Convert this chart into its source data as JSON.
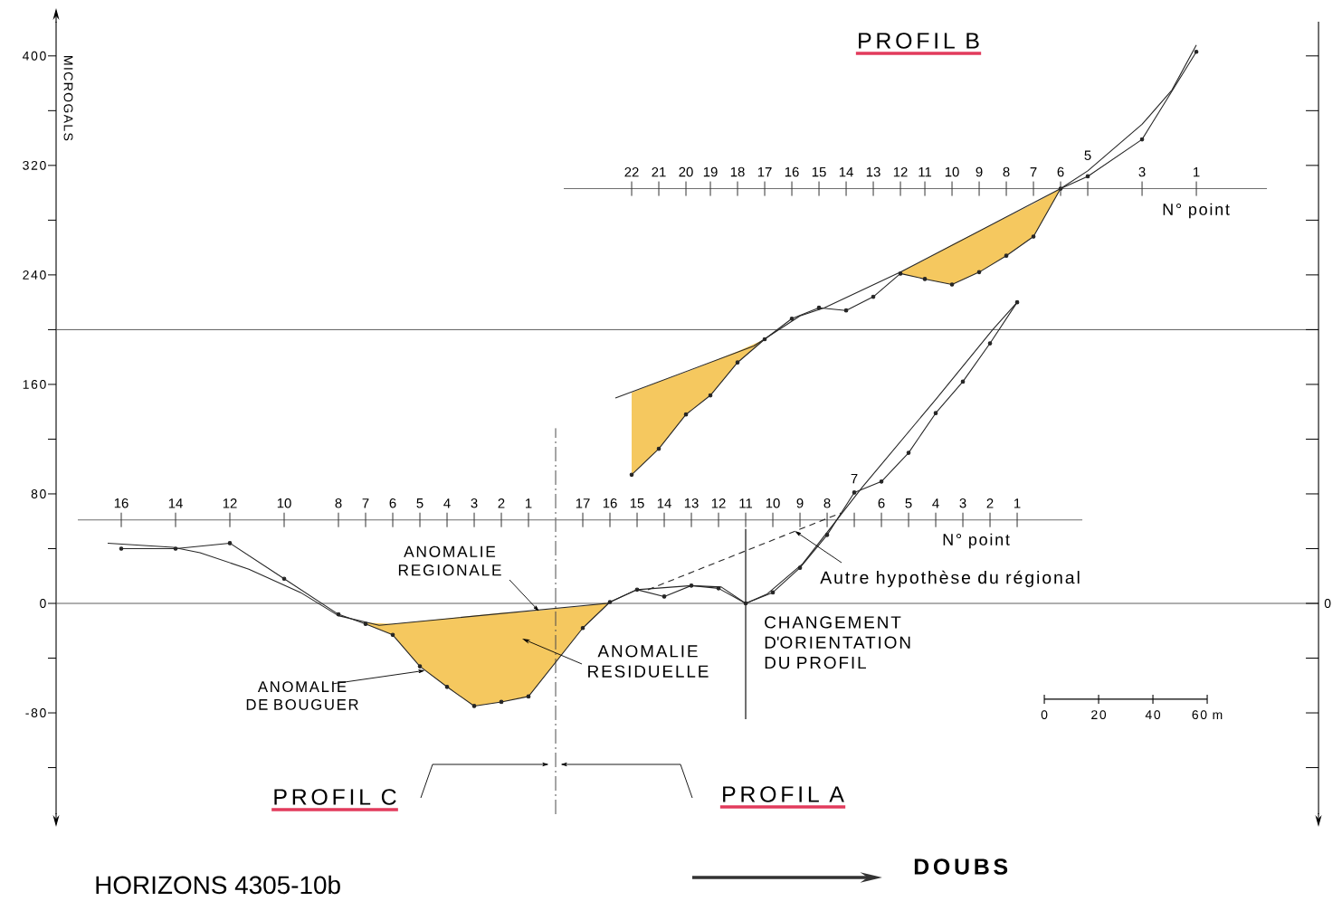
{
  "chart_data": {
    "type": "line",
    "ylabel": "MICROGALS",
    "xlim": [
      -364,
      101
    ],
    "xticks": [
      0,
      20,
      40,
      {
        "value": 60,
        "label": "60 m"
      }
    ],
    "ylim": [
      -154,
      425
    ],
    "yticks": [
      {
        "value": -120,
        "label": null
      },
      -80,
      {
        "value": -40,
        "label": null
      },
      0,
      {
        "value": 40,
        "label": null
      },
      80,
      {
        "value": 120,
        "label": null
      },
      160,
      {
        "value": 200,
        "label": null
      },
      240,
      {
        "value": 280,
        "label": null
      },
      320,
      {
        "value": 360,
        "label": null
      },
      400
    ],
    "series": [
      {
        "color": "#6e6e6e",
        "x": [
          -356,
          14
        ],
        "values": [
          61,
          61
        ]
      },
      {
        "color": "#6e6e6e",
        "x": [
          -177,
          82
        ],
        "values": [
          303,
          303
        ]
      },
      {
        "color": "#262626",
        "marker": "circle",
        "x": [
          -340,
          -320,
          -300,
          -280,
          -260,
          -250,
          -240,
          -230,
          -220,
          -210,
          -200,
          -190,
          -170,
          -160,
          -150,
          -140,
          -130,
          -120,
          -110,
          -100,
          -90,
          -80,
          -70,
          -60,
          -50,
          -40,
          -30,
          -20,
          -10
        ],
        "values": [
          40,
          40,
          44,
          18,
          -8,
          -15,
          -23,
          -46,
          -61,
          -75,
          -72,
          -68,
          -18,
          1,
          10,
          5,
          13,
          11,
          0,
          8,
          26,
          50,
          81,
          89,
          110,
          139,
          162,
          190,
          220
        ],
        "lower": [
          null,
          null,
          null,
          null,
          null,
          -15,
          -23,
          -46,
          -61,
          -75,
          -72,
          -68,
          -18,
          1,
          null,
          null,
          null,
          null,
          null,
          null,
          null,
          null,
          null,
          null,
          null,
          null,
          null,
          null,
          null
        ],
        "upper": [
          null,
          null,
          null,
          null,
          null,
          -14,
          -15,
          -13,
          -11,
          -9,
          -7,
          -6,
          -2,
          1,
          null,
          null,
          null,
          null,
          null,
          null,
          null,
          null,
          null,
          null,
          null,
          null,
          null,
          null,
          null
        ]
      },
      {
        "color": "#262626",
        "x": [
          -345,
          -321,
          -311,
          -293,
          -274,
          -260,
          -245,
          -161,
          -150,
          -130,
          -119,
          -110,
          -102,
          -89,
          -67,
          -40,
          -19,
          -10
        ],
        "values": [
          44,
          41,
          37,
          25,
          8,
          -9,
          -16,
          0,
          10,
          13,
          12,
          0,
          7,
          29,
          85,
          149,
          200,
          220
        ]
      },
      {
        "color": "#262626",
        "line_style": "dashed",
        "x": [
          -146,
          -75
        ],
        "values": [
          10,
          66
        ]
      },
      {
        "color": "#262626",
        "marker": "circle",
        "x": [
          -152,
          -142,
          -132,
          -123,
          -113,
          -103,
          -93,
          -83,
          -73,
          -63,
          -53,
          -44,
          -34,
          -24,
          -14,
          -4,
          6,
          16,
          36,
          56
        ],
        "values": [
          94,
          113,
          138,
          152,
          176,
          193,
          208,
          216,
          214,
          224,
          241,
          237,
          233,
          242,
          254,
          268,
          303,
          312,
          339,
          403
        ],
        "lower": [
          94,
          113,
          138,
          152,
          176,
          193,
          null,
          null,
          null,
          null,
          241,
          237,
          233,
          242,
          254,
          268,
          303,
          null,
          null,
          null
        ],
        "upper": [
          154,
          162,
          169,
          176,
          184,
          193,
          null,
          null,
          null,
          null,
          242,
          251,
          262,
          272,
          282,
          292,
          303,
          null,
          null,
          null
        ]
      },
      {
        "color": "#262626",
        "x": [
          -158,
          -107,
          -90,
          -81,
          -53,
          6,
          16,
          36,
          47,
          56
        ],
        "values": [
          150,
          188,
          210,
          216,
          242,
          303,
          316,
          350,
          375,
          408
        ]
      },
      {
        "color": "#000000",
        "x": [
          0,
          60
        ],
        "values": [
          -70,
          -70
        ]
      }
    ],
    "ref_lines": [
      {
        "axis": "y",
        "value": 0
      },
      {
        "axis": "y",
        "value": 200
      },
      {
        "axis": "x",
        "value": -180,
        "line_style": "dashed"
      },
      {
        "axis": "x",
        "value": -110,
        "label": "CHANGEMENT D'ORIENTATION DU PROFIL"
      }
    ],
    "annotations": [
      {
        "text": "16",
        "x": -340,
        "y": 61
      },
      {
        "text": "14",
        "x": -320,
        "y": 61
      },
      {
        "text": "12",
        "x": -300,
        "y": 61
      },
      {
        "text": "10",
        "x": -280,
        "y": 61
      },
      {
        "text": "8",
        "x": -260,
        "y": 61
      },
      {
        "text": "7",
        "x": -250,
        "y": 61
      },
      {
        "text": "6",
        "x": -240,
        "y": 61
      },
      {
        "text": "5",
        "x": -230,
        "y": 61
      },
      {
        "text": "4",
        "x": -220,
        "y": 61
      },
      {
        "text": "3",
        "x": -210,
        "y": 61
      },
      {
        "text": "2",
        "x": -200,
        "y": 61
      },
      {
        "text": "1",
        "x": -190,
        "y": 61
      },
      {
        "text": "17",
        "x": -170,
        "y": 61
      },
      {
        "text": "16",
        "x": -160,
        "y": 61
      },
      {
        "text": "15",
        "x": -150,
        "y": 61
      },
      {
        "text": "14",
        "x": -140,
        "y": 61
      },
      {
        "text": "13",
        "x": -130,
        "y": 61
      },
      {
        "text": "12",
        "x": -120,
        "y": 61
      },
      {
        "text": "11",
        "x": -110,
        "y": 61
      },
      {
        "text": "10",
        "x": -100,
        "y": 61
      },
      {
        "text": "9",
        "x": -90,
        "y": 61
      },
      {
        "text": "8",
        "x": -80,
        "y": 61
      },
      {
        "text": "7",
        "x": -70,
        "y": 61
      },
      {
        "text": "6",
        "x": -60,
        "y": 61
      },
      {
        "text": "5",
        "x": -50,
        "y": 61
      },
      {
        "text": "4",
        "x": -40,
        "y": 61
      },
      {
        "text": "3",
        "x": -30,
        "y": 61
      },
      {
        "text": "2",
        "x": -20,
        "y": 61
      },
      {
        "text": "1",
        "x": -10,
        "y": 61
      },
      {
        "text": "22",
        "x": -152,
        "y": 303
      },
      {
        "text": "21",
        "x": -142,
        "y": 303
      },
      {
        "text": "20",
        "x": -132,
        "y": 303
      },
      {
        "text": "19",
        "x": -123,
        "y": 303
      },
      {
        "text": "18",
        "x": -113,
        "y": 303
      },
      {
        "text": "17",
        "x": -103,
        "y": 303
      },
      {
        "text": "16",
        "x": -93,
        "y": 303
      },
      {
        "text": "15",
        "x": -83,
        "y": 303
      },
      {
        "text": "14",
        "x": -73,
        "y": 303
      },
      {
        "text": "13",
        "x": -63,
        "y": 303
      },
      {
        "text": "12",
        "x": -53,
        "y": 303
      },
      {
        "text": "11",
        "x": -44,
        "y": 303
      },
      {
        "text": "10",
        "x": -34,
        "y": 303
      },
      {
        "text": "9",
        "x": -24,
        "y": 303
      },
      {
        "text": "8",
        "x": -14,
        "y": 303
      },
      {
        "text": "7",
        "x": -4,
        "y": 303
      },
      {
        "text": "6",
        "x": 6,
        "y": 303
      },
      {
        "text": "5",
        "x": 16,
        "y": 303
      },
      {
        "text": "3",
        "x": 36,
        "y": 303
      },
      {
        "text": "1",
        "x": 56,
        "y": 303
      },
      "N° point",
      "N° point",
      "PROFIL B",
      "PROFIL C",
      "PROFIL A",
      {
        "text": "ANOMALIE REGIONALE",
        "x": -186,
        "y": -6
      },
      "ANOMALIE RESIDUELLE",
      {
        "text": "ANOMALIE DE BOUGUER",
        "x": -228,
        "y": -49
      },
      {
        "text": "Autre hypothèse du régional",
        "x": -92,
        "y": 53
      },
      "DOUBS",
      "HORIZONS 4305-10b",
      {
        "text": "0",
        "x": 101,
        "y": 0
      }
    ]
  }
}
